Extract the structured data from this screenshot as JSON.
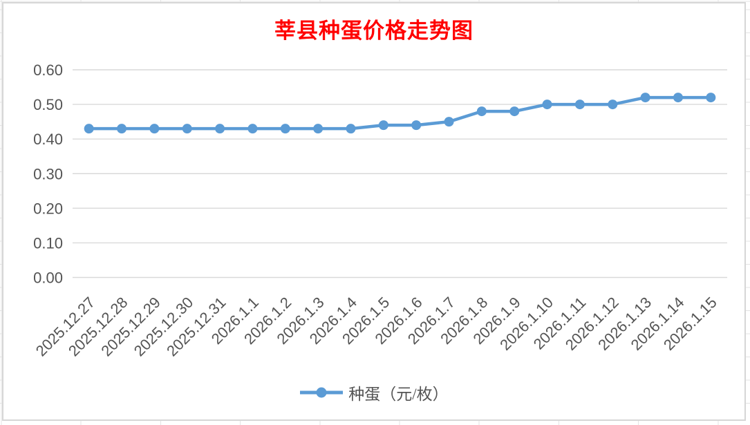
{
  "chart": {
    "title": "莘县种蛋价格走势图",
    "legend": {
      "label": "种蛋（元/枚）"
    },
    "colors": {
      "title": "#FF0000",
      "series": "#5B9BD5",
      "axis_labels": "#545454",
      "gridlines": "#D9D9D9",
      "chart_border": "#D6D6D6",
      "sheet_gridlines": "#E3E3E3"
    }
  },
  "chart_data": {
    "type": "line",
    "title": "莘县种蛋价格走势图",
    "categories": [
      "2025.12.27",
      "2025.12.28",
      "2025.12.29",
      "2025.12.30",
      "2025.12.31",
      "2026.1.1",
      "2026.1.2",
      "2026.1.3",
      "2026.1.4",
      "2026.1.5",
      "2026.1.6",
      "2026.1.7",
      "2026.1.8",
      "2026.1.9",
      "2026.1.10",
      "2026.1.11",
      "2026.1.12",
      "2026.1.13",
      "2026.1.14",
      "2026.1.15"
    ],
    "series": [
      {
        "name": "种蛋（元/枚）",
        "values": [
          0.43,
          0.43,
          0.43,
          0.43,
          0.43,
          0.43,
          0.43,
          0.43,
          0.43,
          0.44,
          0.44,
          0.45,
          0.48,
          0.48,
          0.5,
          0.5,
          0.5,
          0.52,
          0.52,
          0.52
        ]
      }
    ],
    "xlabel": "",
    "ylabel": "",
    "ylim": [
      0,
      0.6
    ],
    "yticks": [
      "0.00",
      "0.10",
      "0.20",
      "0.30",
      "0.40",
      "0.50",
      "0.60"
    ],
    "grid": true,
    "x_tick_rotation_deg": -45,
    "legend_position": "bottom",
    "marker": "circle"
  }
}
